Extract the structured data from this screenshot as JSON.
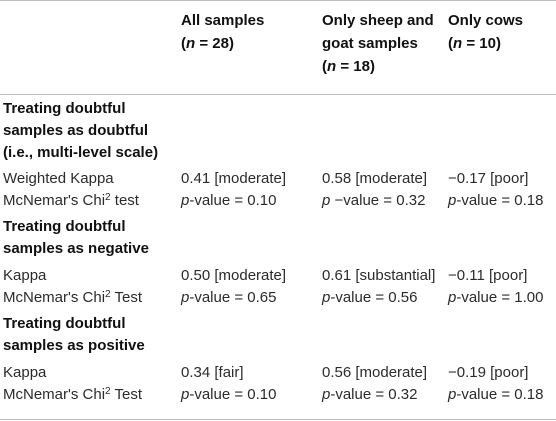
{
  "columns": [
    {
      "line1": "All samples",
      "line2": "(n = 28)",
      "line3": ""
    },
    {
      "line1": "Only sheep and",
      "line2": "goat samples",
      "line3": "(n = 18)"
    },
    {
      "line1": "Only cows",
      "line2": "(n = 10)",
      "line3": ""
    }
  ],
  "sections": [
    {
      "title_lines": [
        "Treating doubtful",
        "samples as doubtful",
        "(i.e., multi-level scale)"
      ],
      "row_a": {
        "label": "Weighted Kappa",
        "v1": "0.41 [moderate]",
        "v2": "0.58 [moderate]",
        "v3": "−0.17 [poor]"
      },
      "row_b": {
        "label_pre": "McNemar's Chi",
        "label_sup": "2",
        "label_post": " test",
        "p_prefix": "p",
        "v1": "-value = 0.10",
        "v2": " −value = 0.32",
        "v3": "-value = 0.18"
      }
    },
    {
      "title_lines": [
        "Treating doubtful",
        "samples as negative"
      ],
      "row_a": {
        "label": "Kappa",
        "v1": "0.50 [moderate]",
        "v2": "0.61 [substantial]",
        "v3": "−0.11 [poor]"
      },
      "row_b": {
        "label_pre": "McNemar's Chi",
        "label_sup": "2",
        "label_post": " Test",
        "p_prefix": "p",
        "v1": "-value = 0.65",
        "v2": "-value = 0.56",
        "v3": "-value = 1.00"
      }
    },
    {
      "title_lines": [
        "Treating doubtful",
        "samples as positive"
      ],
      "row_a": {
        "label": "Kappa",
        "v1": "0.34 [fair]",
        "v2": "0.56 [moderate]",
        "v3": "−0.19 [poor]"
      },
      "row_b": {
        "label_pre": "McNemar's Chi",
        "label_sup": "2",
        "label_post": " Test",
        "p_prefix": "p",
        "v1": "-value = 0.10",
        "v2": "-value = 0.32",
        "v3": "-value = 0.18"
      }
    }
  ]
}
